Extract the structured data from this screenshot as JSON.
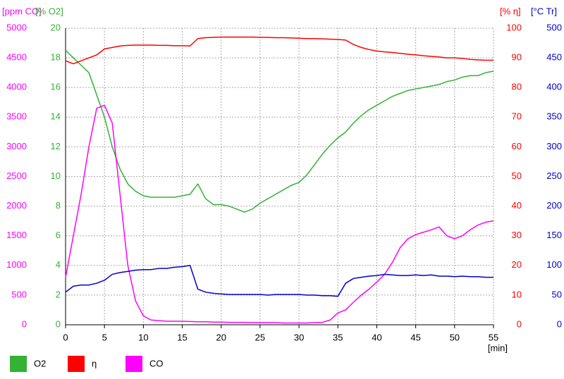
{
  "chart_data": {
    "type": "line",
    "x": [
      0,
      1,
      2,
      3,
      4,
      5,
      6,
      7,
      8,
      9,
      10,
      11,
      12,
      13,
      14,
      15,
      16,
      17,
      18,
      19,
      20,
      21,
      22,
      23,
      24,
      25,
      26,
      27,
      28,
      29,
      30,
      31,
      32,
      33,
      34,
      35,
      36,
      37,
      38,
      39,
      40,
      41,
      42,
      43,
      44,
      45,
      46,
      47,
      48,
      49,
      50,
      51,
      52,
      53,
      54,
      55
    ],
    "xlim": [
      0,
      55
    ],
    "xticks": [
      0,
      5,
      10,
      15,
      20,
      25,
      30,
      35,
      40,
      45,
      50,
      55
    ],
    "xlabel": "[min]",
    "grid": true,
    "axes": [
      {
        "label": "[ppm CO]",
        "lim": [
          0,
          5000
        ],
        "ticks": [
          0,
          500,
          1000,
          1500,
          2000,
          2500,
          3000,
          3500,
          4000,
          4500,
          5000
        ],
        "color": "#ff00ff",
        "side": "left"
      },
      {
        "label": "[% O2]",
        "lim": [
          0,
          20
        ],
        "ticks": [
          0,
          2,
          4,
          6,
          8,
          10,
          12,
          14,
          16,
          18,
          20
        ],
        "color": "#33b233",
        "side": "left"
      },
      {
        "label": "[% η]",
        "lim": [
          0,
          100
        ],
        "ticks": [
          0,
          10,
          20,
          30,
          40,
          50,
          60,
          70,
          80,
          90,
          100
        ],
        "color": "#ff0000",
        "side": "right"
      },
      {
        "label": "[°C Tr]",
        "lim": [
          0,
          500
        ],
        "ticks": [
          0,
          50,
          100,
          150,
          200,
          250,
          300,
          350,
          400,
          450,
          500
        ],
        "color": "#0000cc",
        "side": "right"
      }
    ],
    "series": [
      {
        "name": "O2",
        "color": "#33b233",
        "axis": 1,
        "values": [
          18.5,
          18.0,
          17.5,
          17.0,
          15.5,
          14.0,
          12.0,
          10.5,
          9.5,
          9.0,
          8.7,
          8.6,
          8.6,
          8.6,
          8.6,
          8.7,
          8.8,
          9.5,
          8.5,
          8.1,
          8.1,
          8.0,
          7.8,
          7.6,
          7.8,
          8.2,
          8.5,
          8.8,
          9.1,
          9.4,
          9.6,
          10.1,
          10.8,
          11.5,
          12.1,
          12.6,
          13.0,
          13.6,
          14.1,
          14.5,
          14.8,
          15.1,
          15.4,
          15.6,
          15.8,
          15.9,
          16.0,
          16.1,
          16.2,
          16.4,
          16.5,
          16.7,
          16.8,
          16.8,
          17.0,
          17.1
        ]
      },
      {
        "name": "η",
        "color": "#ff0000",
        "axis": 2,
        "values": [
          89,
          88,
          89,
          90,
          91,
          93,
          93.5,
          94,
          94.2,
          94.3,
          94.3,
          94.3,
          94.2,
          94.2,
          94.1,
          94.1,
          94,
          96.5,
          96.8,
          96.9,
          97,
          97,
          97,
          97,
          97,
          96.9,
          96.9,
          96.8,
          96.8,
          96.7,
          96.6,
          96.5,
          96.5,
          96.4,
          96.3,
          96.2,
          96,
          94.5,
          93.5,
          92.8,
          92.3,
          92,
          91.8,
          91.5,
          91.2,
          91,
          90.7,
          90.5,
          90.3,
          90,
          90,
          89.8,
          89.5,
          89.3,
          89.2,
          89.2
        ]
      },
      {
        "name": "CO",
        "color": "#ff00ff",
        "axis": 0,
        "values": [
          800,
          1500,
          2200,
          3000,
          3650,
          3700,
          3400,
          2200,
          1000,
          400,
          150,
          80,
          70,
          60,
          60,
          60,
          55,
          50,
          50,
          45,
          45,
          40,
          40,
          40,
          35,
          35,
          35,
          35,
          30,
          30,
          30,
          30,
          35,
          40,
          80,
          200,
          250,
          380,
          500,
          600,
          720,
          850,
          1050,
          1300,
          1450,
          1520,
          1560,
          1600,
          1650,
          1500,
          1450,
          1500,
          1600,
          1680,
          1730,
          1750
        ]
      },
      {
        "color": "#0000cc",
        "axis": 3,
        "values": [
          55,
          65,
          67,
          67,
          70,
          75,
          85,
          88,
          90,
          92,
          93,
          93,
          95,
          95,
          97,
          98,
          100,
          60,
          55,
          53,
          52,
          51,
          51,
          51,
          51,
          51,
          50,
          51,
          51,
          51,
          51,
          50,
          50,
          49,
          49,
          48,
          70,
          78,
          80,
          82,
          83,
          85,
          84,
          83,
          83,
          84,
          83,
          84,
          82,
          82,
          81,
          82,
          81,
          81,
          80,
          80
        ]
      }
    ]
  }
}
